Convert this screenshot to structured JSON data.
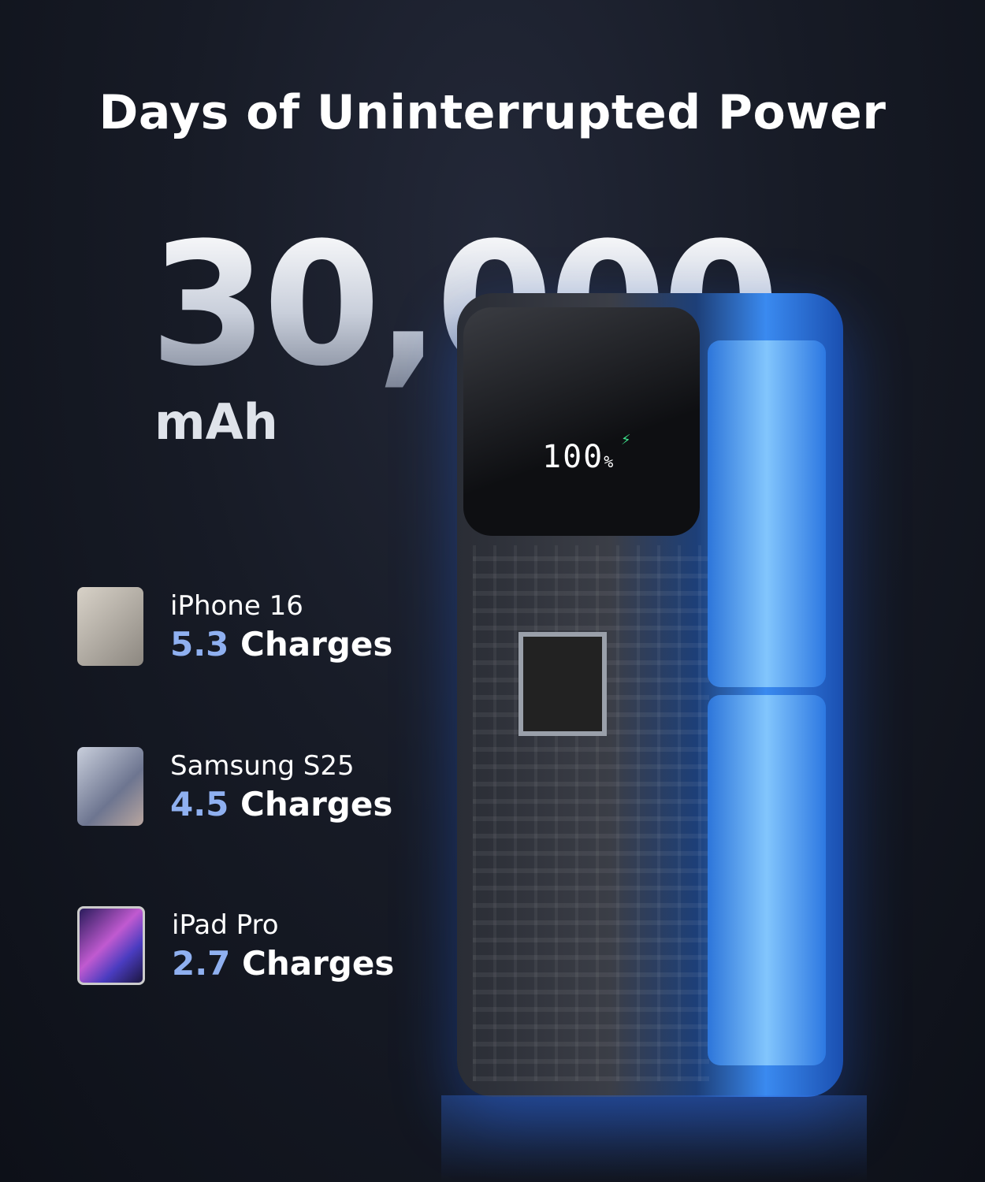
{
  "headline": "Days of Uninterrupted Power",
  "capacity": {
    "value": "30,000",
    "unit": "mAh"
  },
  "display": {
    "percent": "100",
    "percent_sign": "%"
  },
  "devices": [
    {
      "name": "iPhone 16",
      "charges": "5.3",
      "label": "Charges"
    },
    {
      "name": "Samsung S25",
      "charges": "4.5",
      "label": "Charges"
    },
    {
      "name": "iPad Pro",
      "charges": "2.7",
      "label": "Charges"
    }
  ],
  "colors": {
    "accent": "#8fb0f0",
    "glow": "#3a8af0",
    "background": "#171b26",
    "charging_indicator": "#3de08a"
  }
}
